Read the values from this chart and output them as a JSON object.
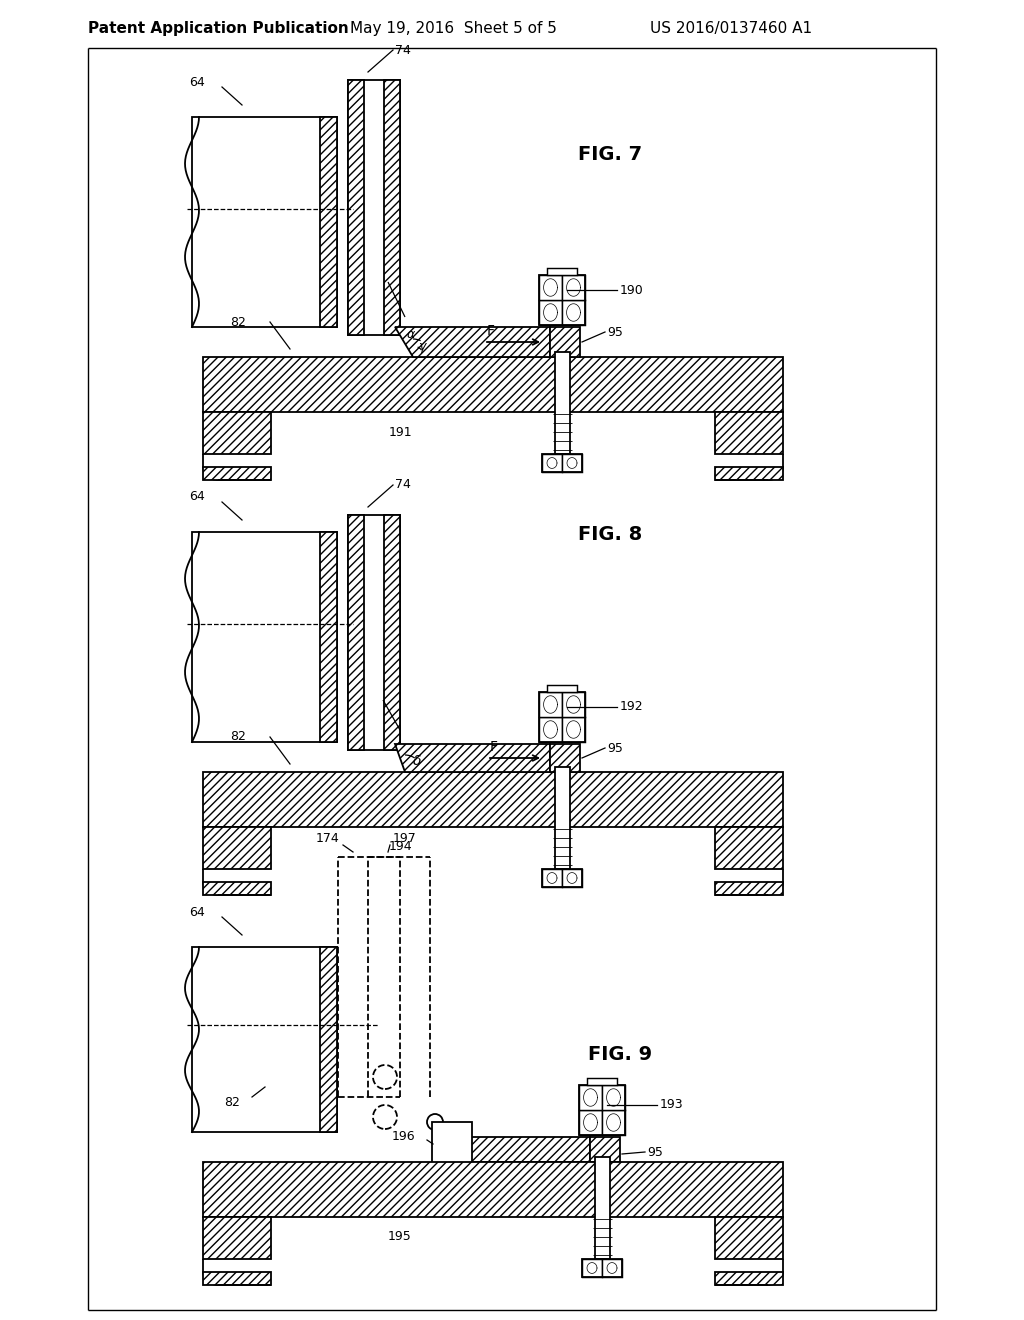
{
  "bg_color": "#ffffff",
  "line_color": "#000000",
  "header_text": "Patent Application Publication",
  "header_date": "May 19, 2016  Sheet 5 of 5",
  "header_patent": "US 2016/0137460 A1",
  "fig7_label": "FIG. 7",
  "fig8_label": "FIG. 8",
  "fig9_label": "FIG. 9"
}
